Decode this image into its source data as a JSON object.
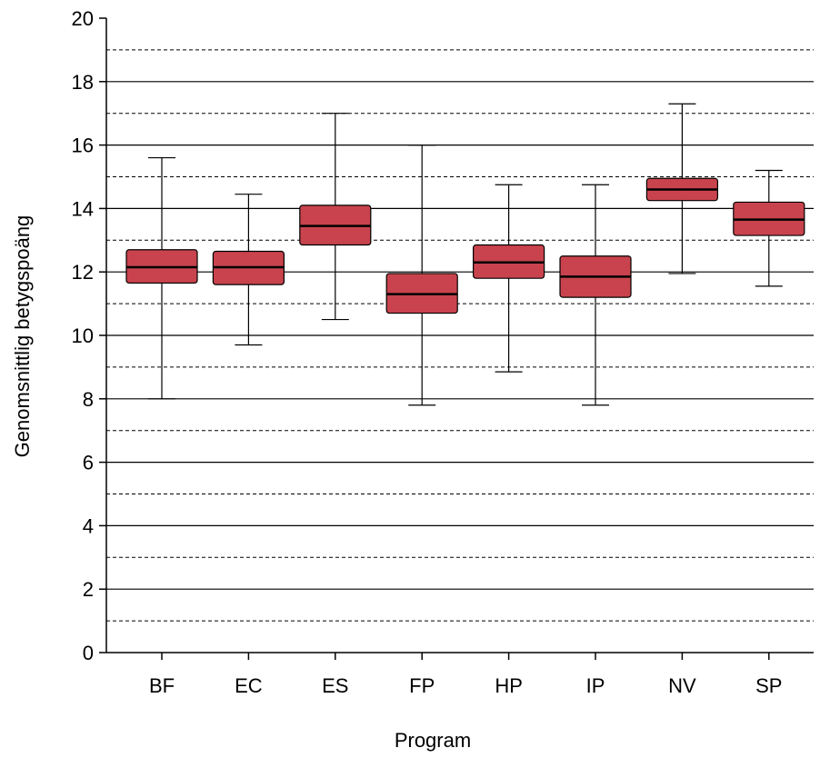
{
  "chart_data": {
    "type": "boxplot",
    "title": "",
    "xlabel": "Program",
    "ylabel": "Genomsnittlig betygspoäng",
    "ylim": [
      0,
      20
    ],
    "yticks": [
      0,
      2,
      4,
      6,
      8,
      10,
      12,
      14,
      16,
      18,
      20
    ],
    "grid": {
      "major_solid": true,
      "minor_dashed": true
    },
    "box_color": "#c8434d",
    "categories": [
      "BF",
      "EC",
      "ES",
      "FP",
      "HP",
      "IP",
      "NV",
      "SP"
    ],
    "boxes": [
      {
        "category": "BF",
        "min": 8.0,
        "q1": 11.65,
        "median": 12.15,
        "q3": 12.7,
        "max": 15.6
      },
      {
        "category": "EC",
        "min": 9.7,
        "q1": 11.6,
        "median": 12.15,
        "q3": 12.65,
        "max": 14.45
      },
      {
        "category": "ES",
        "min": 10.5,
        "q1": 12.85,
        "median": 13.45,
        "q3": 14.1,
        "max": 17.0
      },
      {
        "category": "FP",
        "min": 7.8,
        "q1": 10.7,
        "median": 11.3,
        "q3": 11.95,
        "max": 16.0
      },
      {
        "category": "HP",
        "min": 8.85,
        "q1": 11.8,
        "median": 12.3,
        "q3": 12.85,
        "max": 14.75
      },
      {
        "category": "IP",
        "min": 7.8,
        "q1": 11.2,
        "median": 11.85,
        "q3": 12.5,
        "max": 14.75
      },
      {
        "category": "NV",
        "min": 11.95,
        "q1": 14.25,
        "median": 14.6,
        "q3": 14.95,
        "max": 17.3
      },
      {
        "category": "SP",
        "min": 11.55,
        "q1": 13.15,
        "median": 13.65,
        "q3": 14.2,
        "max": 15.2
      }
    ]
  }
}
